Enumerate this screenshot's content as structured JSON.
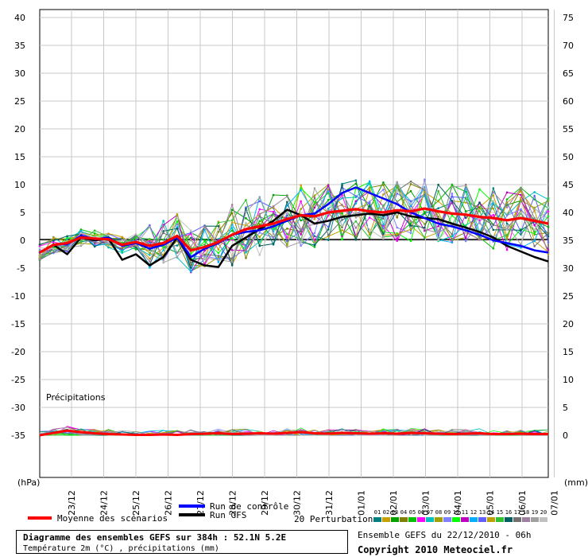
{
  "chart_data": {
    "type": "line",
    "x_dates": [
      "23/12",
      "24/12",
      "25/12",
      "26/12",
      "27/12",
      "28/12",
      "29/12",
      "30/12",
      "31/12",
      "01/01",
      "02/01",
      "03/01",
      "04/01",
      "05/01",
      "06/01",
      "07/01"
    ],
    "y_left_ticks": [
      40,
      35,
      30,
      25,
      20,
      15,
      10,
      5,
      0,
      -5,
      -10,
      -15,
      -20,
      -25,
      -30,
      -35
    ],
    "y_right_ticks": [
      75,
      70,
      65,
      60,
      55,
      50,
      45,
      40,
      35,
      30,
      25,
      20,
      15,
      10,
      5,
      0
    ],
    "left_unit": "(hPa)",
    "right_unit": "(mm)",
    "precip_label": "Précipitations",
    "ylim": [
      -35,
      40
    ],
    "series": {
      "moyenne": [
        -2.2,
        -0.8,
        -0.5,
        0.5,
        0.3,
        0.2,
        -0.8,
        -0.3,
        -1.0,
        -0.5,
        0.8,
        -1.8,
        -1.2,
        -0.3,
        1.0,
        2.0,
        2.5,
        3.0,
        3.8,
        4.5,
        4.3,
        5.0,
        5.3,
        5.6,
        5.2,
        5.0,
        5.4,
        5.2,
        5.7,
        5.2,
        4.8,
        4.6,
        4.2,
        4.0,
        3.6,
        4.0,
        3.5,
        3.0
      ],
      "controle": [
        -2.2,
        -0.8,
        -0.7,
        0.8,
        0.2,
        0.5,
        -1.0,
        -0.5,
        -1.5,
        -0.8,
        0.5,
        -3.0,
        -1.5,
        -0.5,
        1.0,
        1.5,
        1.8,
        2.5,
        3.5,
        4.5,
        4.8,
        6.5,
        8.5,
        9.5,
        8.5,
        7.5,
        6.5,
        5.0,
        4.0,
        3.0,
        2.5,
        1.8,
        1.0,
        0.0,
        -0.5,
        -1.0,
        -1.8,
        -2.2
      ],
      "gfs": [
        -2.2,
        -0.8,
        -2.5,
        0.5,
        0.0,
        0.3,
        -3.5,
        -2.5,
        -4.5,
        -3.0,
        0.5,
        -3.5,
        -4.5,
        -4.8,
        -1.0,
        0.5,
        2.0,
        3.5,
        5.5,
        4.5,
        3.0,
        3.5,
        4.2,
        4.5,
        4.8,
        4.5,
        5.0,
        4.3,
        4.0,
        3.8,
        3.0,
        2.3,
        1.5,
        0.5,
        -1.0,
        -2.0,
        -3.0,
        -3.8
      ],
      "precip_moyenne": [
        0,
        0.6,
        1.2,
        0.8,
        0.5,
        0.3,
        0.2,
        0.1,
        0.1,
        0.2,
        0.1,
        0.3,
        0.4,
        0.5,
        0.3,
        0.4,
        0.5,
        0.4,
        0.6,
        0.8,
        0.5,
        0.4,
        0.6,
        0.5,
        0.4,
        0.5,
        0.4,
        0.6,
        0.5,
        0.4,
        0.3,
        0.4,
        0.5,
        0.3,
        0.3,
        0.4,
        0.3,
        0.3
      ]
    },
    "legend": {
      "moyenne": "Moyenne des scénarios",
      "controle": "Run de contrôle",
      "gfs": "Run GFS",
      "perturbations": "20 Perturbations",
      "perturbation_ids": [
        "01",
        "02",
        "03",
        "04",
        "05",
        "06",
        "07",
        "08",
        "09",
        "10",
        "11",
        "12",
        "13",
        "14",
        "15",
        "16",
        "17",
        "18",
        "19",
        "20"
      ]
    },
    "colors": {
      "moyenne": "#ff0000",
      "controle": "#0000ff",
      "gfs": "#000000",
      "perturbations": [
        "#008080",
        "#c8a000",
        "#00a000",
        "#808000",
        "#00c000",
        "#ff00ff",
        "#00c0c0",
        "#a0a000",
        "#8080ff",
        "#00ff00",
        "#c000c0",
        "#00b0ff",
        "#6060ff",
        "#c0a000",
        "#30c030",
        "#006060",
        "#707070",
        "#a080a0",
        "#a0a0a0",
        "#c0c0c0"
      ]
    }
  },
  "footer": {
    "title": "Diagramme des ensembles GEFS sur 384h : 52.1N 5.2E",
    "subtitle": "Température 2m (°C) , précipitations (mm)",
    "ensemble_info": "Ensemble GEFS du 22/12/2010 - 06h",
    "copyright": "Copyright 2010 Meteociel.fr"
  }
}
